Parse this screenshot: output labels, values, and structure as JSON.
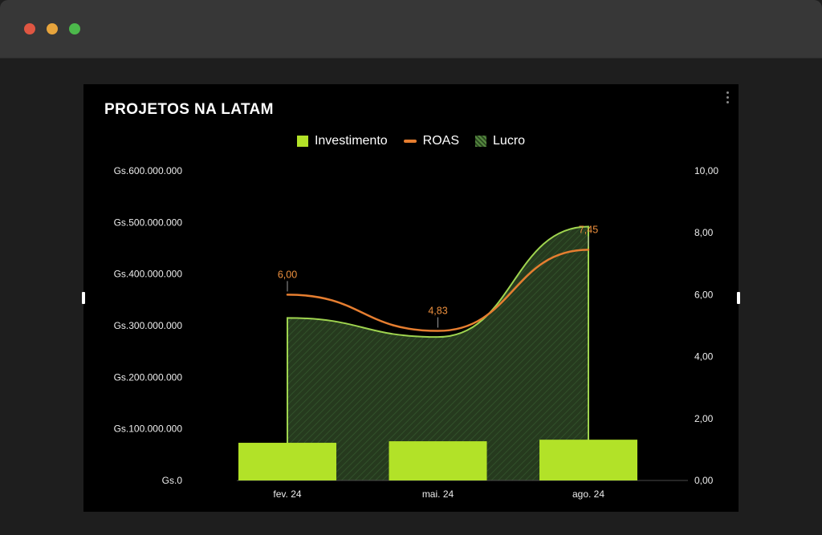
{
  "window": {
    "titlebar": {
      "buttons": [
        "close",
        "minimize",
        "zoom"
      ]
    }
  },
  "chart": {
    "title": "PROJETOS NA LATAM",
    "menu_icon": "kebab-menu-icon",
    "legend": [
      {
        "label": "Investimento",
        "swatch": "square",
        "color": "#b2e228"
      },
      {
        "label": "ROAS",
        "swatch": "dash",
        "color": "#e67e30"
      },
      {
        "label": "Lucro",
        "swatch": "pattern-square",
        "color": "#55883f"
      }
    ]
  },
  "chart_data": {
    "type": "combo",
    "title": "PROJETOS NA LATAM",
    "categories": [
      "fev. 24",
      "mai. 24",
      "ago. 24"
    ],
    "series": [
      {
        "name": "Investimento",
        "type": "bar",
        "axis": "left",
        "color": "#b2e228",
        "values": [
          73000000,
          76000000,
          79000000
        ]
      },
      {
        "name": "Lucro",
        "type": "area",
        "axis": "left",
        "fill": "#263a1e",
        "hatch": "#31512a",
        "stroke": "#9fd44f",
        "values": [
          315000000,
          278000000,
          492000000
        ]
      },
      {
        "name": "ROAS",
        "type": "line",
        "axis": "right",
        "color": "#e67e30",
        "label_color": "#ef913e",
        "values": [
          6.0,
          4.83,
          7.45
        ],
        "labels": [
          "6,00",
          "4,83",
          "7,45"
        ]
      }
    ],
    "left_axis": {
      "min": 0,
      "max": 600000000,
      "ticks": [
        "Gs.600.000.000",
        "Gs.500.000.000",
        "Gs.400.000.000",
        "Gs.300.000.000",
        "Gs.200.000.000",
        "Gs.100.000.000",
        "Gs.0"
      ]
    },
    "right_axis": {
      "min": 0,
      "max": 10,
      "ticks": [
        "10,00",
        "8,00",
        "6,00",
        "4,00",
        "2,00",
        "0,00"
      ]
    },
    "grid": false,
    "legend_position": "top-center",
    "background": "#000000"
  }
}
